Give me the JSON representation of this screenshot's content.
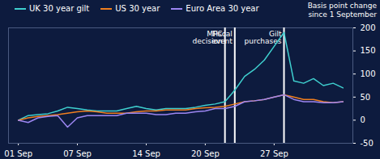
{
  "chart_data": {
    "type": "line",
    "y_label": "Basis point change since 1 September",
    "legend": "top-left",
    "grid": false,
    "x": [
      1,
      2,
      3,
      4,
      5,
      6,
      7,
      8,
      9,
      10,
      11,
      12,
      13,
      14,
      15,
      16,
      17,
      18,
      19,
      20,
      21,
      22,
      23,
      24,
      25,
      26,
      27,
      28,
      29,
      30,
      31,
      32,
      33,
      34
    ],
    "xlim": [
      0,
      35
    ],
    "xticks": [
      {
        "value": 1,
        "label": "01 Sep"
      },
      {
        "value": 7,
        "label": "07 Sep"
      },
      {
        "value": 14,
        "label": "14 Sep"
      },
      {
        "value": 20,
        "label": "20 Sep"
      },
      {
        "value": 27,
        "label": "27 Sep"
      }
    ],
    "ylim": [
      -50,
      200
    ],
    "yticks": [
      -50,
      0,
      50,
      100,
      150,
      200
    ],
    "series": [
      {
        "name": "UK 30 year gilt",
        "color": "#3fd0cf",
        "values": [
          0,
          10,
          12,
          14,
          20,
          28,
          25,
          22,
          20,
          20,
          20,
          25,
          30,
          25,
          22,
          25,
          25,
          25,
          28,
          32,
          35,
          40,
          65,
          95,
          110,
          130,
          160,
          190,
          85,
          80,
          90,
          75,
          80,
          70
        ]
      },
      {
        "name": "US 30 year",
        "color": "#f07f1f",
        "values": [
          0,
          5,
          8,
          10,
          12,
          15,
          18,
          20,
          18,
          15,
          15,
          15,
          18,
          20,
          20,
          22,
          22,
          22,
          25,
          27,
          28,
          30,
          35,
          40,
          42,
          45,
          50,
          55,
          50,
          45,
          45,
          40,
          38,
          40
        ]
      },
      {
        "name": "Euro Area 30 year",
        "color": "#9c86f2",
        "values": [
          0,
          -5,
          5,
          8,
          10,
          -15,
          5,
          10,
          10,
          10,
          10,
          15,
          15,
          15,
          12,
          12,
          15,
          15,
          18,
          20,
          25,
          25,
          30,
          40,
          42,
          45,
          50,
          55,
          45,
          40,
          40,
          38,
          38,
          40
        ]
      }
    ],
    "annotations": [
      {
        "x": 22,
        "label": "MPC decision"
      },
      {
        "x": 23,
        "label": "Fiscal event"
      },
      {
        "x": 28,
        "label": "Gilt purchases"
      }
    ]
  }
}
